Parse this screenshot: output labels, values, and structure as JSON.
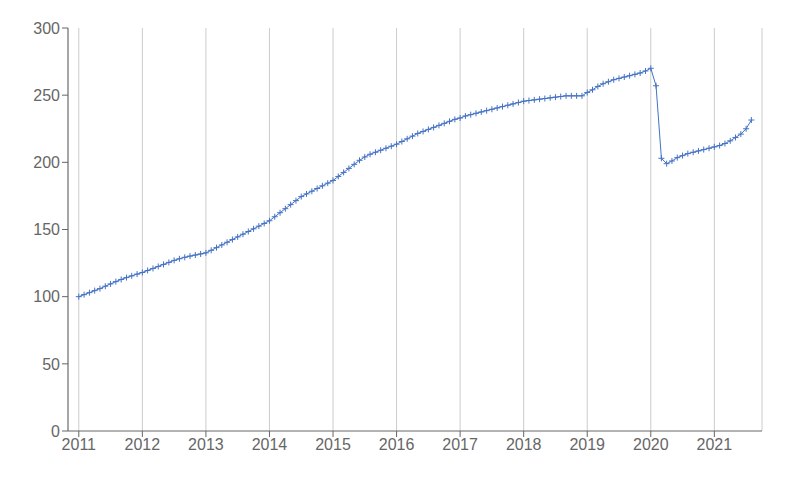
{
  "chart_data": {
    "type": "line",
    "color": "#4472C4",
    "marker": "plus",
    "grid": "x",
    "xlim": [
      2010.83,
      2021.75
    ],
    "xticks": [
      2011,
      2012,
      2013,
      2014,
      2015,
      2016,
      2017,
      2018,
      2019,
      2020,
      2021
    ],
    "ylim": [
      0,
      300
    ],
    "yticks": [
      0,
      50,
      100,
      150,
      200,
      250,
      300
    ],
    "x": [
      2011.0,
      2011.083,
      2011.167,
      2011.25,
      2011.333,
      2011.417,
      2011.5,
      2011.583,
      2011.667,
      2011.75,
      2011.833,
      2011.917,
      2012.0,
      2012.083,
      2012.167,
      2012.25,
      2012.333,
      2012.417,
      2012.5,
      2012.583,
      2012.667,
      2012.75,
      2012.833,
      2012.917,
      2013.0,
      2013.083,
      2013.167,
      2013.25,
      2013.333,
      2013.417,
      2013.5,
      2013.583,
      2013.667,
      2013.75,
      2013.833,
      2013.917,
      2014.0,
      2014.083,
      2014.167,
      2014.25,
      2014.333,
      2014.417,
      2014.5,
      2014.583,
      2014.667,
      2014.75,
      2014.833,
      2014.917,
      2015.0,
      2015.083,
      2015.167,
      2015.25,
      2015.333,
      2015.417,
      2015.5,
      2015.583,
      2015.667,
      2015.75,
      2015.833,
      2015.917,
      2016.0,
      2016.083,
      2016.167,
      2016.25,
      2016.333,
      2016.417,
      2016.5,
      2016.583,
      2016.667,
      2016.75,
      2016.833,
      2016.917,
      2017.0,
      2017.083,
      2017.167,
      2017.25,
      2017.333,
      2017.417,
      2017.5,
      2017.583,
      2017.667,
      2017.75,
      2017.833,
      2017.917,
      2018.0,
      2018.083,
      2018.167,
      2018.25,
      2018.333,
      2018.417,
      2018.5,
      2018.583,
      2018.667,
      2018.75,
      2018.833,
      2018.917,
      2019.0,
      2019.083,
      2019.167,
      2019.25,
      2019.333,
      2019.417,
      2019.5,
      2019.583,
      2019.667,
      2019.75,
      2019.833,
      2019.917,
      2020.0,
      2020.083,
      2020.167,
      2020.25,
      2020.333,
      2020.417,
      2020.5,
      2020.583,
      2020.667,
      2020.75,
      2020.833,
      2020.917,
      2021.0,
      2021.083,
      2021.167,
      2021.25,
      2021.333,
      2021.417,
      2021.5,
      2021.583
    ],
    "values": [
      100.0,
      101.5,
      103.0,
      104.5,
      106.0,
      107.8,
      109.5,
      111.2,
      112.8,
      114.2,
      115.5,
      116.8,
      118.0,
      119.5,
      121.0,
      122.5,
      124.0,
      125.5,
      127.0,
      128.2,
      129.3,
      130.2,
      131.0,
      131.8,
      132.6,
      134.5,
      136.5,
      138.5,
      140.5,
      142.5,
      144.5,
      146.5,
      148.5,
      150.5,
      152.5,
      154.5,
      156.5,
      159.5,
      162.5,
      165.5,
      168.5,
      171.5,
      174.5,
      176.5,
      178.5,
      180.5,
      182.5,
      184.5,
      186.5,
      189.5,
      192.5,
      195.5,
      198.5,
      201.5,
      204.0,
      206.0,
      207.5,
      209.0,
      210.5,
      212.0,
      213.5,
      215.5,
      217.5,
      219.5,
      221.5,
      223.0,
      224.5,
      226.0,
      227.5,
      229.0,
      230.5,
      232.0,
      233.0,
      234.5,
      235.5,
      236.5,
      237.5,
      238.5,
      239.5,
      240.5,
      241.5,
      242.5,
      243.5,
      244.5,
      245.5,
      246.0,
      246.5,
      247.0,
      247.5,
      248.0,
      248.5,
      249.0,
      249.5,
      249.5,
      249.5,
      249.5,
      252.0,
      254.0,
      256.5,
      258.5,
      260.0,
      261.5,
      262.5,
      263.5,
      264.5,
      265.5,
      266.5,
      268.0,
      270.0,
      257.0,
      203.0,
      199.0,
      201.0,
      203.5,
      205.0,
      206.5,
      207.5,
      208.5,
      209.5,
      210.5,
      211.5,
      212.5,
      214.0,
      216.0,
      218.5,
      221.0,
      225.0,
      231.5
    ]
  }
}
